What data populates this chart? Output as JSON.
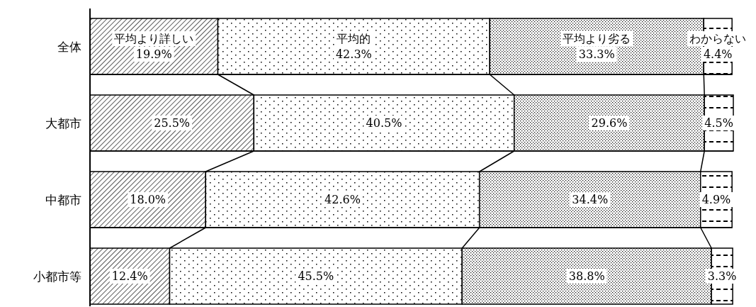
{
  "chart_data": {
    "type": "bar",
    "orientation": "horizontal",
    "stacked": true,
    "categories": [
      "全体",
      "大都市",
      "中都市",
      "小都市等"
    ],
    "series": [
      {
        "name": "平均より詳しい",
        "values": [
          19.9,
          25.5,
          18.0,
          12.4
        ],
        "value_labels": [
          "19.9%",
          "25.5%",
          "18.0%",
          "12.4%"
        ]
      },
      {
        "name": "平均的",
        "values": [
          42.3,
          40.5,
          42.6,
          45.5
        ],
        "value_labels": [
          "42.3%",
          "40.5%",
          "42.6%",
          "45.5%"
        ]
      },
      {
        "name": "平均より劣る",
        "values": [
          33.3,
          29.6,
          34.4,
          38.8
        ],
        "value_labels": [
          "33.3%",
          "29.6%",
          "34.4%",
          "38.8%"
        ]
      },
      {
        "name": "わからない",
        "values": [
          4.4,
          4.5,
          4.9,
          3.3
        ],
        "value_labels": [
          "4.4%",
          "4.5%",
          "4.9%",
          "3.3%"
        ]
      }
    ]
  }
}
